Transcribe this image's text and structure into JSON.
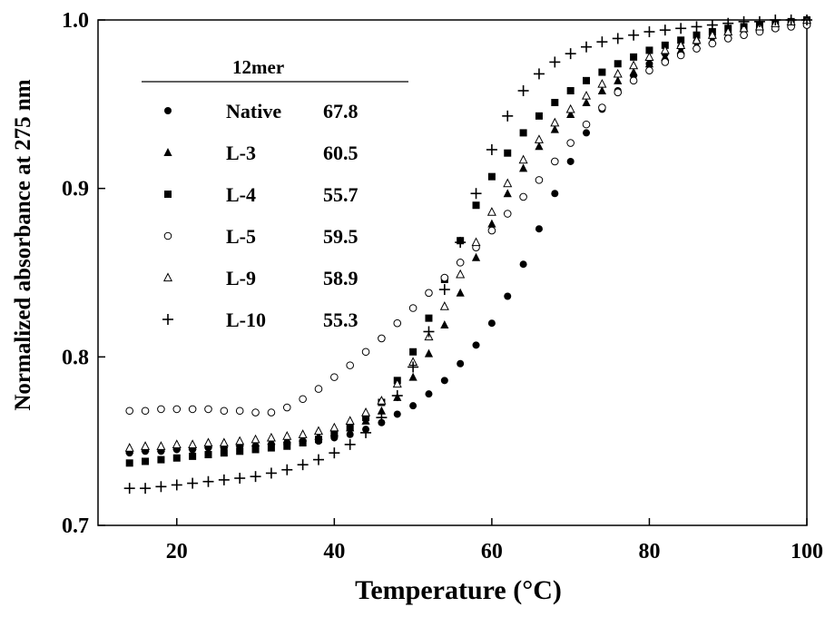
{
  "chart_data": {
    "type": "scatter",
    "xlabel": "Temperature (°C)",
    "ylabel": "Normalized absorbance at 275 nm",
    "xlim": [
      10,
      100
    ],
    "ylim": [
      0.7,
      1.0
    ],
    "xticks": [
      20,
      40,
      60,
      80,
      100
    ],
    "yticks": [
      0.7,
      0.8,
      0.9,
      1.0
    ],
    "x_tick_labels": [
      "20",
      "40",
      "60",
      "80",
      "100"
    ],
    "y_tick_labels": [
      "0.7",
      "0.8",
      "0.9",
      "1.0"
    ],
    "grid": false,
    "legend_title": "12mer",
    "legend_position": "top-left",
    "x": [
      14,
      16,
      18,
      20,
      22,
      24,
      26,
      28,
      30,
      32,
      34,
      36,
      38,
      40,
      42,
      44,
      46,
      48,
      50,
      52,
      54,
      56,
      58,
      60,
      62,
      64,
      66,
      68,
      70,
      72,
      74,
      76,
      78,
      80,
      82,
      84,
      86,
      88,
      90,
      92,
      94,
      96,
      98,
      100
    ],
    "series": [
      {
        "name": "Native",
        "tm": "67.8",
        "marker": "filled-circle",
        "values": [
          0.743,
          0.744,
          0.744,
          0.745,
          0.745,
          0.746,
          0.746,
          0.747,
          0.747,
          0.748,
          0.748,
          0.749,
          0.75,
          0.752,
          0.754,
          0.757,
          0.761,
          0.766,
          0.771,
          0.778,
          0.786,
          0.796,
          0.807,
          0.82,
          0.836,
          0.855,
          0.876,
          0.897,
          0.916,
          0.933,
          0.947,
          0.958,
          0.967,
          0.974,
          0.98,
          0.984,
          0.987,
          0.99,
          0.992,
          0.994,
          0.995,
          0.996,
          0.997,
          0.998
        ]
      },
      {
        "name": "L-3",
        "tm": "60.5",
        "marker": "filled-triangle",
        "values": [
          0.745,
          0.746,
          0.746,
          0.747,
          0.747,
          0.748,
          0.748,
          0.749,
          0.749,
          0.75,
          0.751,
          0.752,
          0.753,
          0.755,
          0.758,
          0.762,
          0.768,
          0.776,
          0.788,
          0.802,
          0.819,
          0.838,
          0.859,
          0.879,
          0.897,
          0.912,
          0.925,
          0.935,
          0.944,
          0.951,
          0.958,
          0.964,
          0.969,
          0.974,
          0.978,
          0.982,
          0.985,
          0.988,
          0.991,
          0.993,
          0.995,
          0.996,
          0.998,
          0.999
        ]
      },
      {
        "name": "L-4",
        "tm": "55.7",
        "marker": "filled-square",
        "values": [
          0.737,
          0.738,
          0.739,
          0.74,
          0.741,
          0.742,
          0.743,
          0.744,
          0.745,
          0.746,
          0.747,
          0.749,
          0.751,
          0.754,
          0.758,
          0.764,
          0.773,
          0.786,
          0.803,
          0.823,
          0.846,
          0.869,
          0.89,
          0.907,
          0.921,
          0.933,
          0.943,
          0.951,
          0.958,
          0.964,
          0.969,
          0.974,
          0.978,
          0.982,
          0.985,
          0.988,
          0.991,
          0.993,
          0.995,
          0.996,
          0.997,
          0.998,
          0.999,
          1.0
        ]
      },
      {
        "name": "L-5",
        "tm": "59.5",
        "marker": "open-circle",
        "values": [
          0.768,
          0.768,
          0.769,
          0.769,
          0.769,
          0.769,
          0.768,
          0.768,
          0.767,
          0.767,
          0.77,
          0.775,
          0.781,
          0.788,
          0.795,
          0.803,
          0.811,
          0.82,
          0.829,
          0.838,
          0.847,
          0.856,
          0.865,
          0.875,
          0.885,
          0.895,
          0.905,
          0.916,
          0.927,
          0.938,
          0.948,
          0.957,
          0.964,
          0.97,
          0.975,
          0.979,
          0.983,
          0.986,
          0.989,
          0.991,
          0.993,
          0.995,
          0.996,
          0.997
        ]
      },
      {
        "name": "L-9",
        "tm": "58.9",
        "marker": "open-triangle",
        "values": [
          0.746,
          0.747,
          0.747,
          0.748,
          0.748,
          0.749,
          0.749,
          0.75,
          0.751,
          0.752,
          0.753,
          0.754,
          0.756,
          0.758,
          0.762,
          0.767,
          0.774,
          0.784,
          0.797,
          0.812,
          0.83,
          0.849,
          0.868,
          0.886,
          0.903,
          0.917,
          0.929,
          0.939,
          0.947,
          0.955,
          0.962,
          0.968,
          0.973,
          0.978,
          0.982,
          0.985,
          0.988,
          0.991,
          0.993,
          0.995,
          0.996,
          0.998,
          0.999,
          1.0
        ]
      },
      {
        "name": "L-10",
        "tm": "55.3",
        "marker": "plus",
        "values": [
          0.722,
          0.722,
          0.723,
          0.724,
          0.725,
          0.726,
          0.727,
          0.728,
          0.729,
          0.731,
          0.733,
          0.736,
          0.739,
          0.743,
          0.748,
          0.755,
          0.764,
          0.777,
          0.794,
          0.815,
          0.84,
          0.868,
          0.897,
          0.923,
          0.943,
          0.958,
          0.968,
          0.975,
          0.98,
          0.984,
          0.987,
          0.989,
          0.991,
          0.993,
          0.994,
          0.995,
          0.996,
          0.997,
          0.998,
          0.999,
          0.999,
          1.0,
          1.0,
          1.0
        ]
      }
    ]
  }
}
